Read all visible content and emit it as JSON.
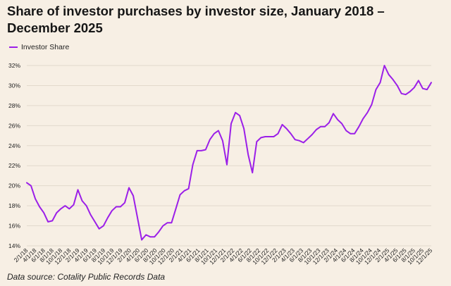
{
  "chart_data": {
    "type": "line",
    "title": "Share of investor purchases by investor size, January 2018 – December 2025",
    "xlabel": "",
    "ylabel": "",
    "ylim": [
      14,
      32
    ],
    "yticks": [
      "14%",
      "16%",
      "18%",
      "20%",
      "22%",
      "24%",
      "26%",
      "28%",
      "30%",
      "32%"
    ],
    "ytick_values": [
      14,
      16,
      18,
      20,
      22,
      24,
      26,
      28,
      30,
      32
    ],
    "xticks": [
      "2/1/18",
      "4/1/18",
      "6/1/18",
      "8/1/18",
      "10/1/18",
      "12/1/18",
      "2/1/19",
      "4/1/19",
      "6/1/19",
      "8/1/19",
      "10/1/19",
      "12/1/19",
      "2/1/20",
      "4/1/20",
      "6/1/20",
      "8/1/20",
      "10/1/20",
      "12/1/20",
      "2/1/21",
      "4/1/21",
      "6/1/21",
      "8/1/21",
      "10/1/21",
      "12/1/21",
      "2/1/22",
      "4/1/22",
      "6/1/22",
      "8/1/22",
      "10/1/22",
      "12/1/22",
      "2/1/23",
      "4/1/23",
      "6/1/23",
      "8/1/23",
      "10/1/23",
      "12/1/23",
      "2/1/24",
      "4/1/24",
      "6/1/24",
      "8/1/24",
      "10/1/24",
      "12/1/24",
      "2/1/25",
      "4/1/25",
      "6/1/25",
      "8/1/25",
      "10/1/25",
      "12/1/25"
    ],
    "grid": true,
    "legend_position": "top-left",
    "series": [
      {
        "name": "Investor Share",
        "color": "#9b1fe8",
        "values": [
          20.3,
          20.0,
          18.7,
          17.9,
          17.3,
          16.4,
          16.5,
          17.3,
          17.7,
          18.0,
          17.7,
          18.1,
          19.6,
          18.5,
          18.0,
          17.1,
          16.4,
          15.7,
          16.0,
          16.8,
          17.5,
          17.9,
          17.9,
          18.3,
          19.8,
          19.0,
          16.8,
          14.6,
          15.1,
          14.9,
          14.9,
          15.4,
          16.0,
          16.3,
          16.3,
          17.7,
          19.1,
          19.5,
          19.7,
          22.1,
          23.5,
          23.5,
          23.6,
          24.6,
          25.2,
          25.5,
          24.5,
          22.1,
          26.2,
          27.3,
          27.0,
          25.7,
          23.1,
          21.3,
          24.4,
          24.8,
          24.9,
          24.9,
          24.9,
          25.2,
          26.1,
          25.7,
          25.2,
          24.6,
          24.5,
          24.3,
          24.7,
          25.1,
          25.6,
          25.9,
          25.9,
          26.3,
          27.2,
          26.6,
          26.2,
          25.5,
          25.2,
          25.2,
          25.9,
          26.7,
          27.3,
          28.1,
          29.6,
          30.3,
          32.0,
          31.1,
          30.6,
          30.0,
          29.2,
          29.1,
          29.4,
          29.8,
          30.5,
          29.7,
          29.6,
          30.3
        ]
      }
    ]
  },
  "legend": {
    "label": "Investor Share"
  },
  "source": "Data source: Cotality Public Records Data"
}
